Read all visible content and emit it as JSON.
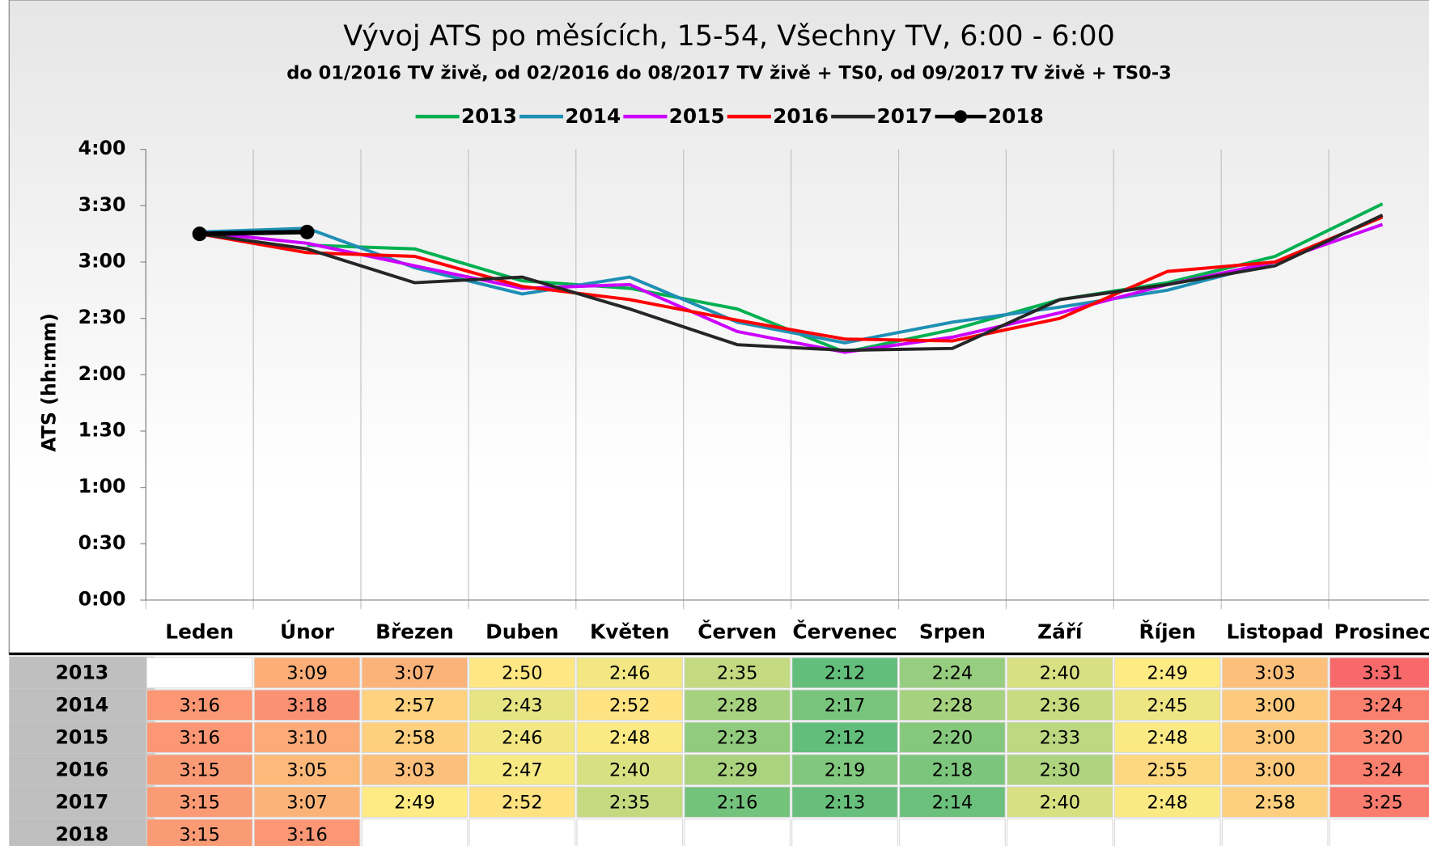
{
  "chart_data": {
    "type": "line",
    "title": "Vývoj ATS po měsících, 15-54, Všechny TV, 6:00 - 6:00",
    "subtitle": "do 01/2016 TV živě, od 02/2016 do 08/2017 TV živě + TS0, od 09/2017 TV živě + TS0-3",
    "y_label": "ATS (hh:mm)",
    "categories": [
      "Leden",
      "Únor",
      "Březen",
      "Duben",
      "Květen",
      "Červen",
      "Červenec",
      "Srpen",
      "Září",
      "Říjen",
      "Listopad",
      "Prosinec"
    ],
    "ylim": [
      0,
      240
    ],
    "yticks": [
      {
        "value": 0,
        "label": "0:00"
      },
      {
        "value": 30,
        "label": "0:30"
      },
      {
        "value": 60,
        "label": "1:00"
      },
      {
        "value": 90,
        "label": "1:30"
      },
      {
        "value": 120,
        "label": "2:00"
      },
      {
        "value": 150,
        "label": "2:30"
      },
      {
        "value": 180,
        "label": "3:00"
      },
      {
        "value": 210,
        "label": "3:30"
      },
      {
        "value": 240,
        "label": "4:00"
      }
    ],
    "legend": "top",
    "series": [
      {
        "name": "2013",
        "color": "#00b050",
        "values": [
          null,
          189,
          187,
          170,
          166,
          155,
          132,
          144,
          160,
          169,
          183,
          211
        ],
        "value_labels": [
          null,
          "3:09",
          "3:07",
          "2:50",
          "2:46",
          "2:35",
          "2:12",
          "2:24",
          "2:40",
          "2:49",
          "3:03",
          "3:31"
        ]
      },
      {
        "name": "2014",
        "color": "#1f8fb4",
        "values": [
          196,
          198,
          177,
          163,
          172,
          148,
          137,
          148,
          156,
          165,
          180,
          204
        ],
        "value_labels": [
          "3:16",
          "3:18",
          "2:57",
          "2:43",
          "2:52",
          "2:28",
          "2:17",
          "2:28",
          "2:36",
          "2:45",
          "3:00",
          "3:24"
        ]
      },
      {
        "name": "2015",
        "color": "#cc00ff",
        "values": [
          196,
          190,
          178,
          166,
          168,
          143,
          132,
          140,
          153,
          168,
          180,
          200
        ],
        "value_labels": [
          "3:16",
          "3:10",
          "2:58",
          "2:46",
          "2:48",
          "2:23",
          "2:12",
          "2:20",
          "2:33",
          "2:48",
          "3:00",
          "3:20"
        ]
      },
      {
        "name": "2016",
        "color": "#ff0000",
        "values": [
          195,
          185,
          183,
          167,
          160,
          149,
          139,
          138,
          150,
          175,
          180,
          204
        ],
        "value_labels": [
          "3:15",
          "3:05",
          "3:03",
          "2:47",
          "2:40",
          "2:29",
          "2:19",
          "2:18",
          "2:30",
          "2:55",
          "3:00",
          "3:24"
        ]
      },
      {
        "name": "2017",
        "color": "#262626",
        "values": [
          195,
          187,
          169,
          172,
          155,
          136,
          133,
          134,
          160,
          168,
          178,
          205
        ],
        "value_labels": [
          "3:15",
          "3:07",
          "2:49",
          "2:52",
          "2:35",
          "2:16",
          "2:13",
          "2:14",
          "2:40",
          "2:48",
          "2:58",
          "3:25"
        ]
      },
      {
        "name": "2018",
        "color": "#000000",
        "markers": true,
        "values": [
          195,
          196,
          null,
          null,
          null,
          null,
          null,
          null,
          null,
          null,
          null,
          null
        ],
        "value_labels": [
          "3:15",
          "3:16",
          null,
          null,
          null,
          null,
          null,
          null,
          null,
          null,
          null,
          null
        ]
      }
    ]
  }
}
